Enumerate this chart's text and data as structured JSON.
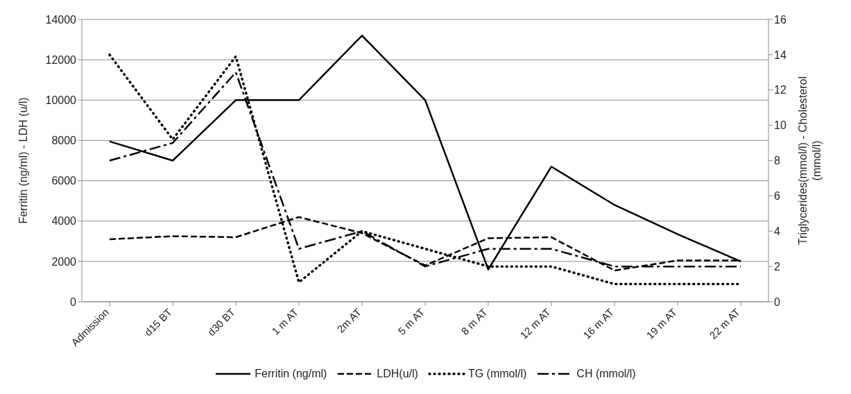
{
  "chart_data": {
    "type": "line",
    "categories": [
      "Admission",
      "d15 BT",
      "d30 BT",
      "1 m AT",
      "2m AT",
      "5 m AT",
      "8 m AT",
      "12 m AT",
      "16 m AT",
      "19 m AT",
      "22 m AT"
    ],
    "ylabel": "Ferritin (ng/ml) - LDH (u/l)",
    "y2label": "Triglycerides(mmol/l) - Cholesterol (mmol/l)",
    "ylim": [
      0,
      14000
    ],
    "yticks": [
      0,
      2000,
      4000,
      6000,
      8000,
      10000,
      12000,
      14000
    ],
    "y2lim": [
      0,
      16
    ],
    "y2ticks": [
      0,
      2,
      4,
      6,
      8,
      10,
      12,
      14,
      16
    ],
    "grid": "y",
    "legend": "bottom",
    "marker": "none",
    "series": [
      {
        "name": "Ferritin (ng/ml)",
        "color": "#000000",
        "line_style": "solid",
        "values": [
          7950,
          7000,
          10000,
          10000,
          13200,
          10000,
          1600,
          6700,
          4800,
          3350,
          2000
        ]
      },
      {
        "name": "LDH(u/l)",
        "color": "#000000",
        "line_style": "dashed",
        "values": [
          3100,
          3250,
          3200,
          4200,
          3400,
          1800,
          3150,
          3200,
          1550,
          2050,
          2050
        ]
      },
      {
        "name": "TG (mmol/l)",
        "color": "#000000",
        "line_style": "dotted",
        "axis": "y2",
        "values": [
          14,
          9.2,
          13.9,
          1.1,
          4,
          3,
          2,
          2,
          1,
          1,
          1
        ]
      },
      {
        "name": "CH (mmol/l)",
        "color": "#000000",
        "line_style": "dashdot",
        "axis": "y2",
        "values": [
          8,
          9,
          13,
          3,
          4,
          2,
          3,
          3,
          2,
          2,
          2
        ]
      }
    ]
  }
}
